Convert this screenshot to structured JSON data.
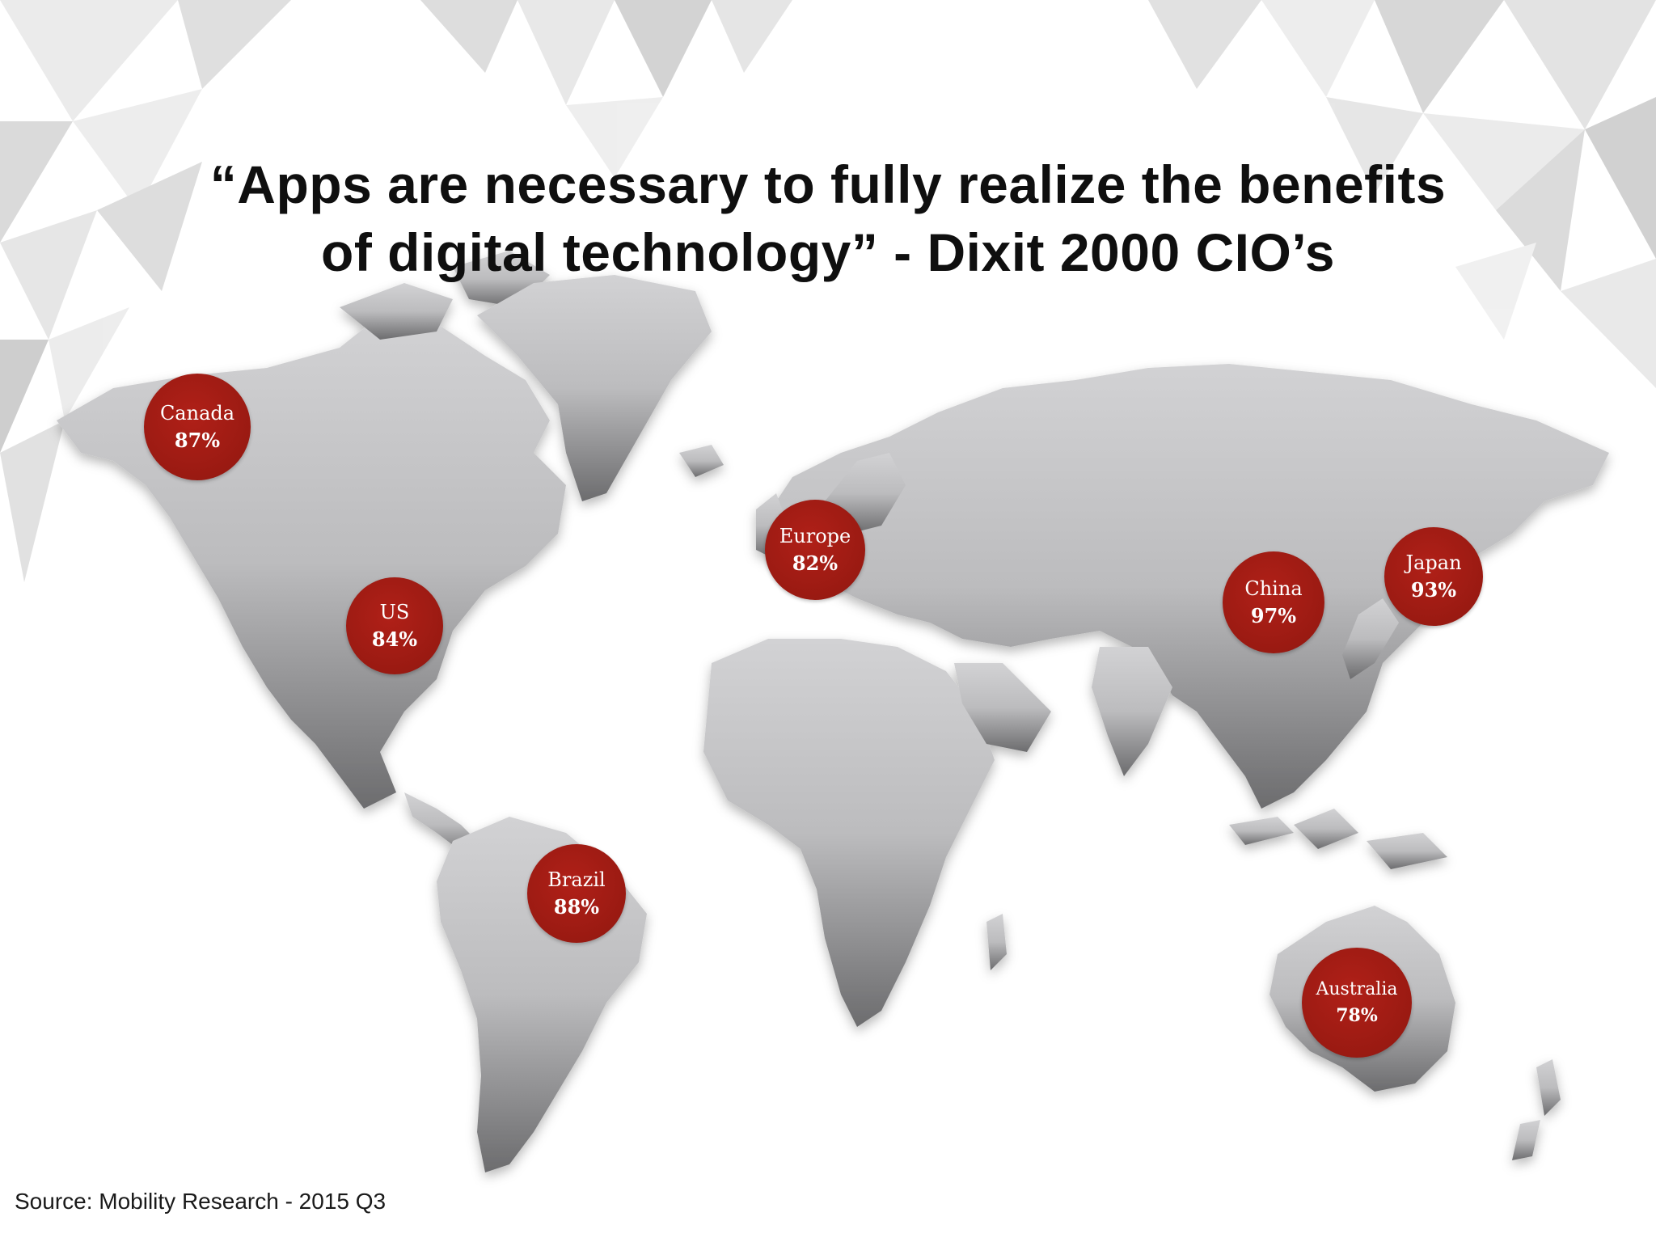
{
  "title": {
    "line1": "“Apps are necessary to fully realize the benefits",
    "line2": "of digital technology” - Dixit 2000 CIO’s"
  },
  "regions": [
    {
      "name": "Canada",
      "percent": "87%"
    },
    {
      "name": "US",
      "percent": "84%"
    },
    {
      "name": "Europe",
      "percent": "82%"
    },
    {
      "name": "Brazil",
      "percent": "88%"
    },
    {
      "name": "China",
      "percent": "97%"
    },
    {
      "name": "Japan",
      "percent": "93%"
    },
    {
      "name": "Australia",
      "percent": "78%"
    }
  ],
  "source": "Source: Mobility Research - 2015 Q3",
  "colors": {
    "marker": "#9d1b13",
    "land": "#b5b5b7",
    "title_text": "#0f0f0f"
  }
}
